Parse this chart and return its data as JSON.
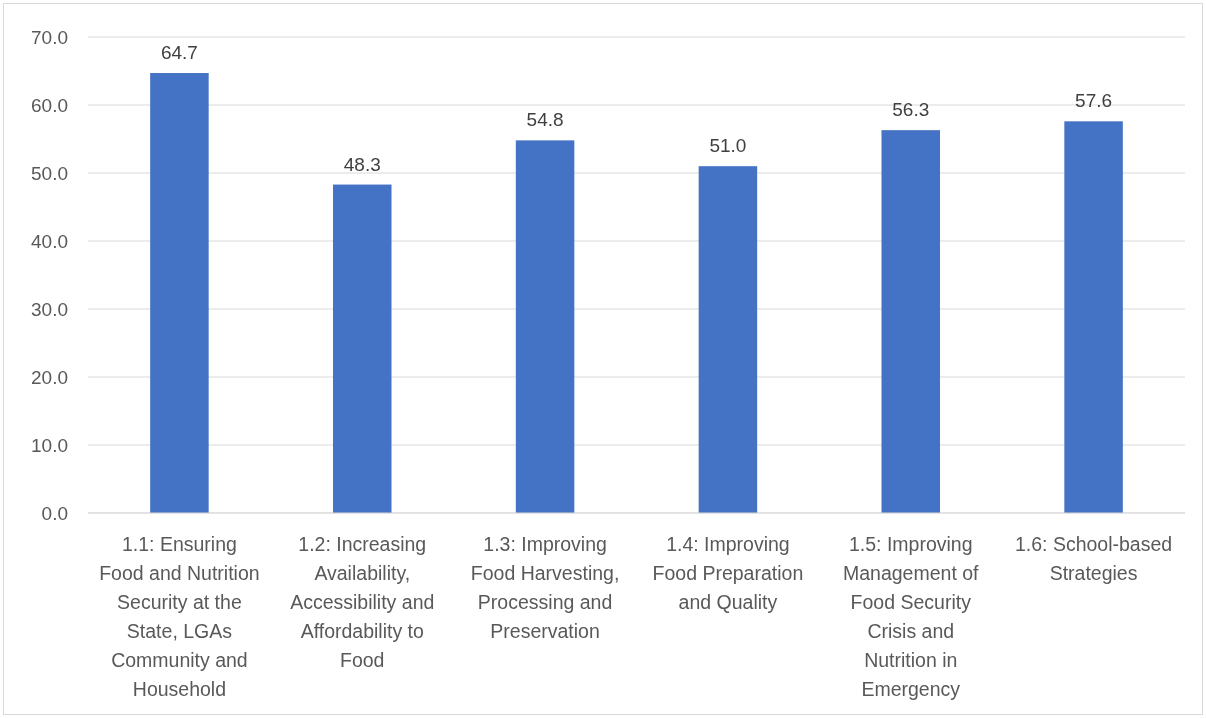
{
  "chart_data": {
    "type": "bar",
    "categories": [
      "1.1: Ensuring Food and Nutrition Security at the State, LGAs Community and Household",
      "1.2: Increasing Availability, Accessibility and Affordability to Food",
      "1.3: Improving Food Harvesting, Processing and Preservation",
      "1.4: Improving Food Preparation and Quality",
      "1.5: Improving Management of Food Security Crisis and Nutrition in Emergency",
      "1.6: School-based Strategies"
    ],
    "values": [
      64.7,
      48.3,
      54.8,
      51.0,
      56.3,
      57.6
    ],
    "color": "#4472c4",
    "ylim": [
      0,
      70
    ],
    "yticks": [
      {
        "value": 0,
        "label": "0.0"
      },
      {
        "value": 10,
        "label": "10.0"
      },
      {
        "value": 20,
        "label": "20.0"
      },
      {
        "value": 30,
        "label": "30.0"
      },
      {
        "value": 40,
        "label": "40.0"
      },
      {
        "value": 50,
        "label": "50.0"
      },
      {
        "value": 60,
        "label": "60.0"
      },
      {
        "value": 70,
        "label": "70.0"
      }
    ],
    "grid": "y",
    "value_labels": [
      "64.7",
      "48.3",
      "54.8",
      "51.0",
      "56.3",
      "57.6"
    ]
  }
}
